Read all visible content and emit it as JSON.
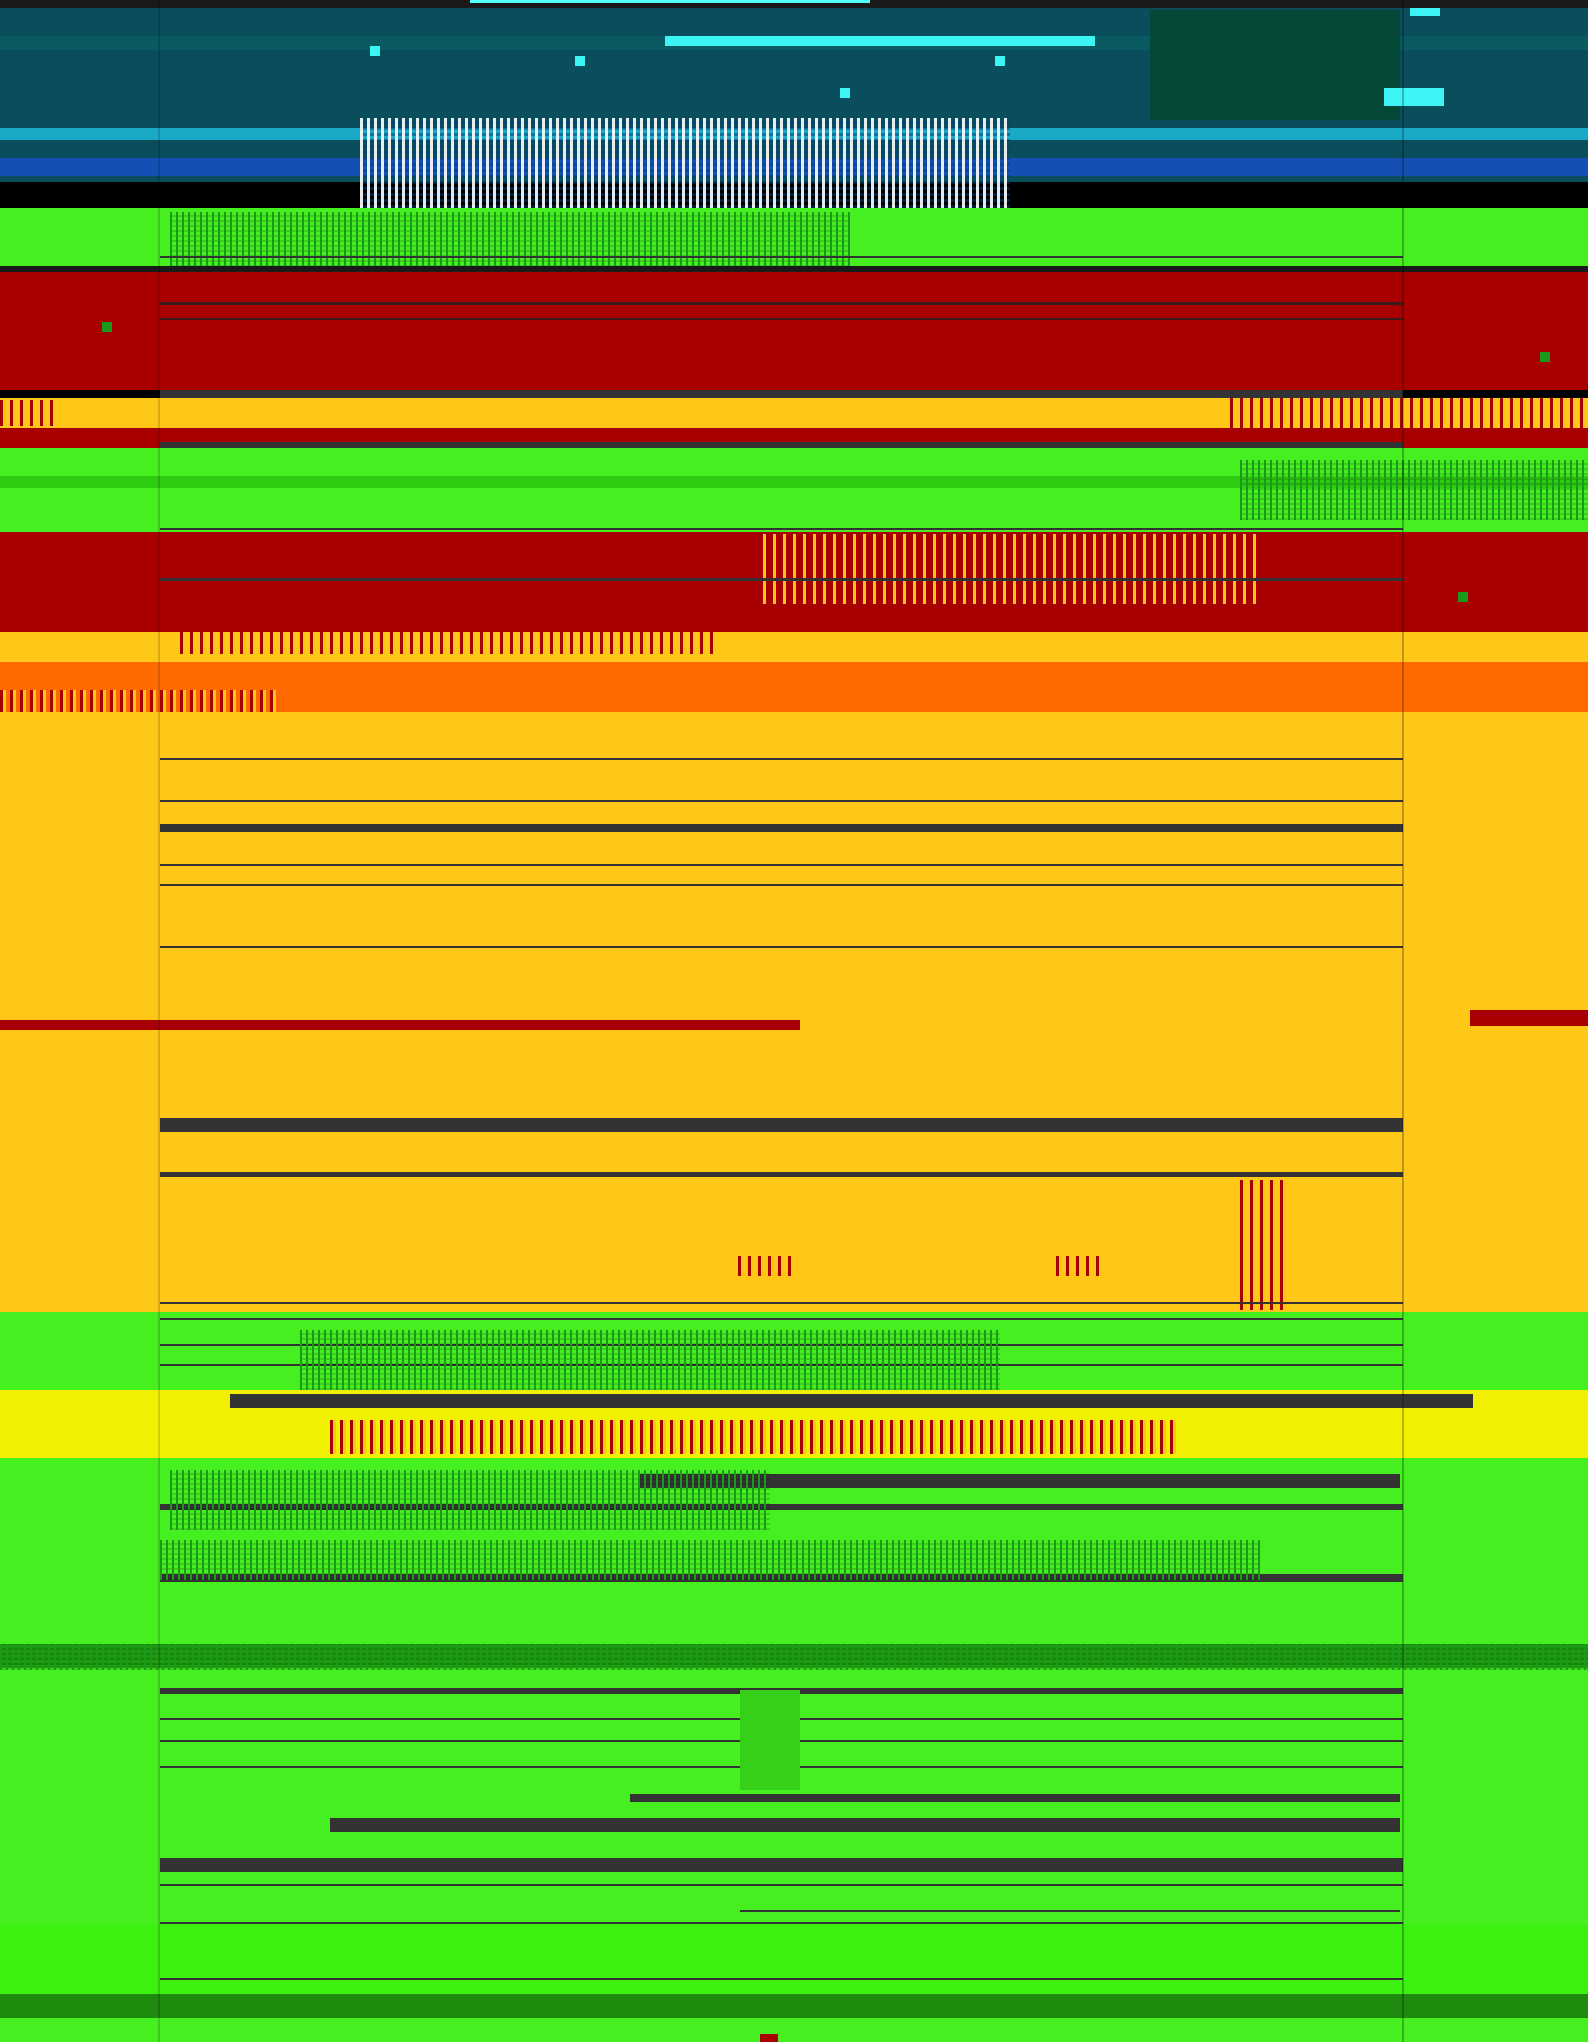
{
  "screen": {
    "description_colors": {
      "sky_top": "#0a4e5e",
      "cyan": "#3cf4f4",
      "blue": "#1450b4",
      "green": "#46f020",
      "red": "#a80000",
      "yellow": "#ffc818",
      "orange": "#ff6a00",
      "bright_yellow": "#f0f000",
      "dark_line": "#333333"
    }
  }
}
